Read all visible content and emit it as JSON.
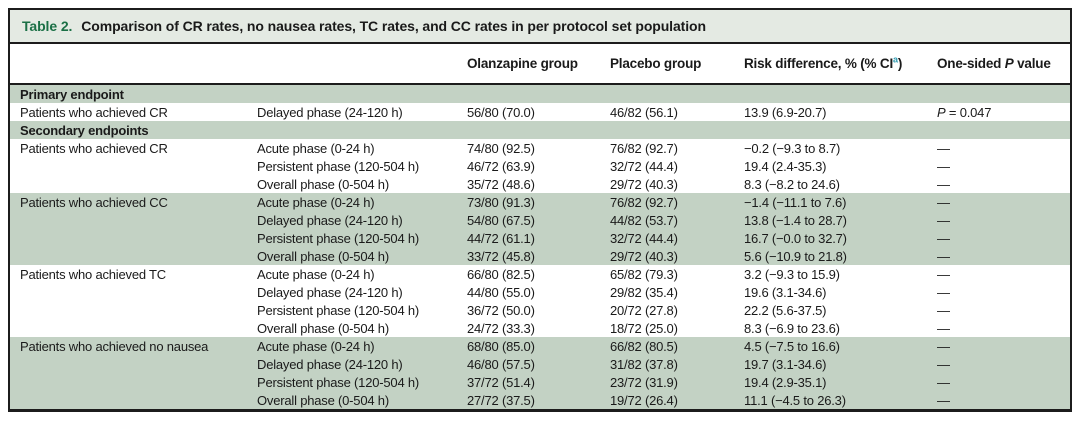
{
  "colors": {
    "row_shade": "#c3d2c4",
    "title_band": "#e4eae3",
    "title_green": "#1b7046",
    "superscript_teal": "#2e9ab0",
    "border": "#1c1c1c"
  },
  "table": {
    "title": {
      "label": "Table 2.",
      "text": "Comparison of CR rates, no nausea rates, TC rates, and CC rates in per protocol set population"
    },
    "header": {
      "olanzapine": "Olanzapine group",
      "placebo": "Placebo group",
      "risk_pre": "Risk difference, % (% CI",
      "risk_sup": "a",
      "risk_post": ")",
      "p_pre": "One-sided ",
      "p_italic": "P",
      "p_post": " value"
    },
    "rows": [
      {
        "kind": "section",
        "shaded": true,
        "label": "Primary endpoint"
      },
      {
        "kind": "data",
        "shaded": false,
        "endpoint": "Patients who achieved CR",
        "phase": "Delayed phase (24-120 h)",
        "olanzapine": "56/80 (70.0)",
        "placebo": "46/82 (56.1)",
        "risk_difference": "13.9 (6.9-20.7)",
        "p_value": "P = 0.047",
        "p_italic": true
      },
      {
        "kind": "section",
        "shaded": true,
        "label": "Secondary endpoints"
      },
      {
        "kind": "data",
        "shaded": false,
        "endpoint": "Patients who achieved CR",
        "phase": "Acute phase (0-24 h)",
        "olanzapine": "74/80 (92.5)",
        "placebo": "76/82 (92.7)",
        "risk_difference": "−0.2 (−9.3 to 8.7)",
        "p_value": "—"
      },
      {
        "kind": "data",
        "shaded": false,
        "endpoint": "",
        "phase": "Persistent phase (120-504 h)",
        "olanzapine": "46/72 (63.9)",
        "placebo": "32/72 (44.4)",
        "risk_difference": "19.4 (2.4-35.3)",
        "p_value": "—"
      },
      {
        "kind": "data",
        "shaded": false,
        "endpoint": "",
        "phase": "Overall phase (0-504 h)",
        "olanzapine": "35/72 (48.6)",
        "placebo": "29/72 (40.3)",
        "risk_difference": "8.3 (−8.2 to 24.6)",
        "p_value": "—"
      },
      {
        "kind": "data",
        "shaded": true,
        "endpoint": "Patients who achieved CC",
        "phase": "Acute phase (0-24 h)",
        "olanzapine": "73/80 (91.3)",
        "placebo": "76/82 (92.7)",
        "risk_difference": "−1.4 (−11.1 to 7.6)",
        "p_value": "—"
      },
      {
        "kind": "data",
        "shaded": true,
        "endpoint": "",
        "phase": "Delayed phase (24-120 h)",
        "olanzapine": "54/80 (67.5)",
        "placebo": "44/82 (53.7)",
        "risk_difference": "13.8 (−1.4 to 28.7)",
        "p_value": "—"
      },
      {
        "kind": "data",
        "shaded": true,
        "endpoint": "",
        "phase": "Persistent phase (120-504 h)",
        "olanzapine": "44/72 (61.1)",
        "placebo": "32/72 (44.4)",
        "risk_difference": "16.7 (−0.0 to 32.7)",
        "p_value": "—"
      },
      {
        "kind": "data",
        "shaded": true,
        "endpoint": "",
        "phase": "Overall phase (0-504 h)",
        "olanzapine": "33/72 (45.8)",
        "placebo": "29/72 (40.3)",
        "risk_difference": "5.6 (−10.9 to 21.8)",
        "p_value": "—"
      },
      {
        "kind": "data",
        "shaded": false,
        "endpoint": "Patients who achieved TC",
        "phase": "Acute phase (0-24 h)",
        "olanzapine": "66/80 (82.5)",
        "placebo": "65/82 (79.3)",
        "risk_difference": "3.2 (−9.3 to 15.9)",
        "p_value": "—"
      },
      {
        "kind": "data",
        "shaded": false,
        "endpoint": "",
        "phase": "Delayed phase (24-120 h)",
        "olanzapine": "44/80 (55.0)",
        "placebo": "29/82 (35.4)",
        "risk_difference": "19.6 (3.1-34.6)",
        "p_value": "—"
      },
      {
        "kind": "data",
        "shaded": false,
        "endpoint": "",
        "phase": "Persistent phase (120-504 h)",
        "olanzapine": "36/72 (50.0)",
        "placebo": "20/72 (27.8)",
        "risk_difference": "22.2 (5.6-37.5)",
        "p_value": "—"
      },
      {
        "kind": "data",
        "shaded": false,
        "endpoint": "",
        "phase": "Overall phase (0-504 h)",
        "olanzapine": "24/72 (33.3)",
        "placebo": "18/72 (25.0)",
        "risk_difference": "8.3 (−6.9 to 23.6)",
        "p_value": "—"
      },
      {
        "kind": "data",
        "shaded": true,
        "endpoint": "Patients who achieved no nausea",
        "phase": "Acute phase (0-24 h)",
        "olanzapine": "68/80 (85.0)",
        "placebo": "66/82 (80.5)",
        "risk_difference": "4.5 (−7.5 to 16.6)",
        "p_value": "—"
      },
      {
        "kind": "data",
        "shaded": true,
        "endpoint": "",
        "phase": "Delayed phase (24-120 h)",
        "olanzapine": "46/80 (57.5)",
        "placebo": "31/82 (37.8)",
        "risk_difference": "19.7 (3.1-34.6)",
        "p_value": "—"
      },
      {
        "kind": "data",
        "shaded": true,
        "endpoint": "",
        "phase": "Persistent phase (120-504 h)",
        "olanzapine": "37/72 (51.4)",
        "placebo": "23/72 (31.9)",
        "risk_difference": "19.4 (2.9-35.1)",
        "p_value": "—"
      },
      {
        "kind": "data",
        "shaded": true,
        "endpoint": "",
        "phase": "Overall phase (0-504 h)",
        "olanzapine": "27/72 (37.5)",
        "placebo": "19/72 (26.4)",
        "risk_difference": "11.1 (−4.5 to 26.3)",
        "p_value": "—"
      }
    ]
  }
}
